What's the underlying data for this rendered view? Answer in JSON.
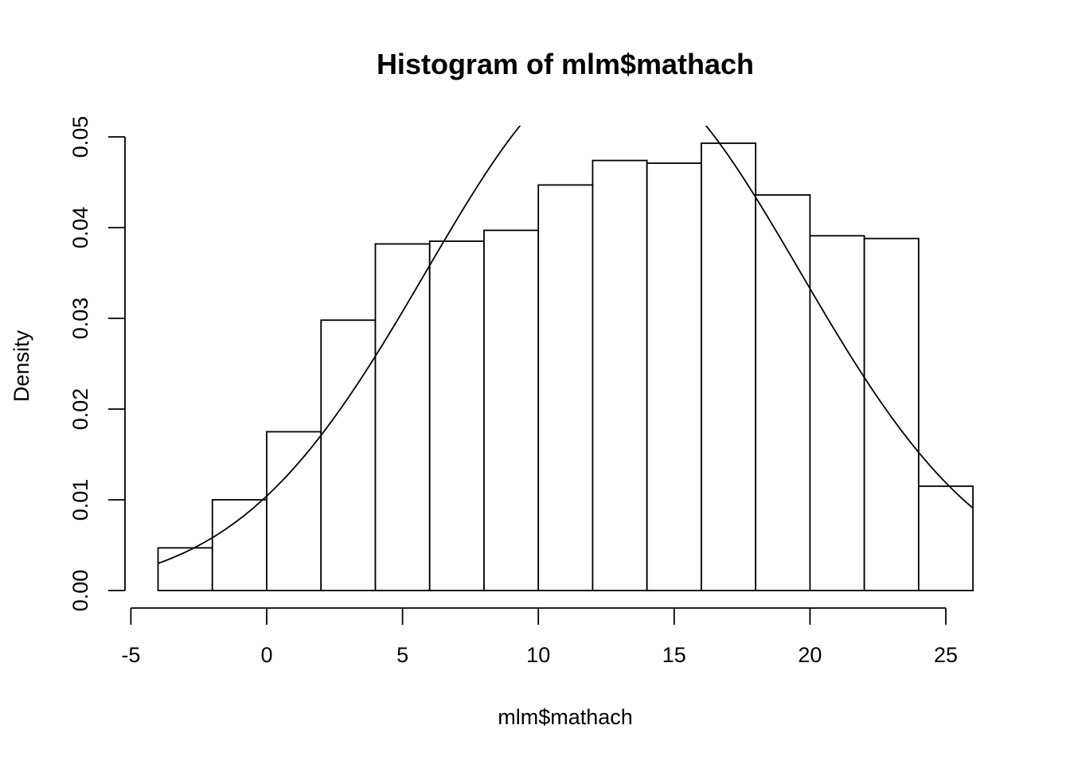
{
  "chart_data": {
    "type": "bar",
    "title": "Histogram of mlm$mathach",
    "xlabel": "mlm$mathach",
    "ylabel": "Density",
    "xlim": [
      -5,
      26
    ],
    "ylim": [
      0,
      0.05
    ],
    "x_ticks": [
      -5,
      0,
      5,
      10,
      15,
      20,
      25
    ],
    "x_tick_labels": [
      "-5",
      "0",
      "5",
      "10",
      "15",
      "20",
      "25"
    ],
    "y_ticks": [
      0,
      0.01,
      0.02,
      0.03,
      0.04,
      0.05
    ],
    "y_tick_labels": [
      "0.00",
      "0.01",
      "0.02",
      "0.03",
      "0.04",
      "0.05"
    ],
    "bins": [
      {
        "start": -4,
        "end": -2,
        "density": 0.0047
      },
      {
        "start": -2,
        "end": 0,
        "density": 0.01
      },
      {
        "start": 0,
        "end": 2,
        "density": 0.0175
      },
      {
        "start": 2,
        "end": 4,
        "density": 0.0298
      },
      {
        "start": 4,
        "end": 6,
        "density": 0.0382
      },
      {
        "start": 6,
        "end": 8,
        "density": 0.0385
      },
      {
        "start": 8,
        "end": 10,
        "density": 0.0397
      },
      {
        "start": 10,
        "end": 12,
        "density": 0.0447
      },
      {
        "start": 12,
        "end": 14,
        "density": 0.0474
      },
      {
        "start": 14,
        "end": 16,
        "density": 0.0471
      },
      {
        "start": 16,
        "end": 18,
        "density": 0.0493
      },
      {
        "start": 18,
        "end": 20,
        "density": 0.0436
      },
      {
        "start": 20,
        "end": 22,
        "density": 0.0391
      },
      {
        "start": 22,
        "end": 24,
        "density": 0.0388
      },
      {
        "start": 24,
        "end": 26,
        "density": 0.0115
      }
    ],
    "overlay_curve": {
      "type": "normal_density",
      "mean": 12.75,
      "sd": 6.88,
      "x_range": [
        -4,
        26
      ]
    },
    "grid": false,
    "legend": "none"
  }
}
